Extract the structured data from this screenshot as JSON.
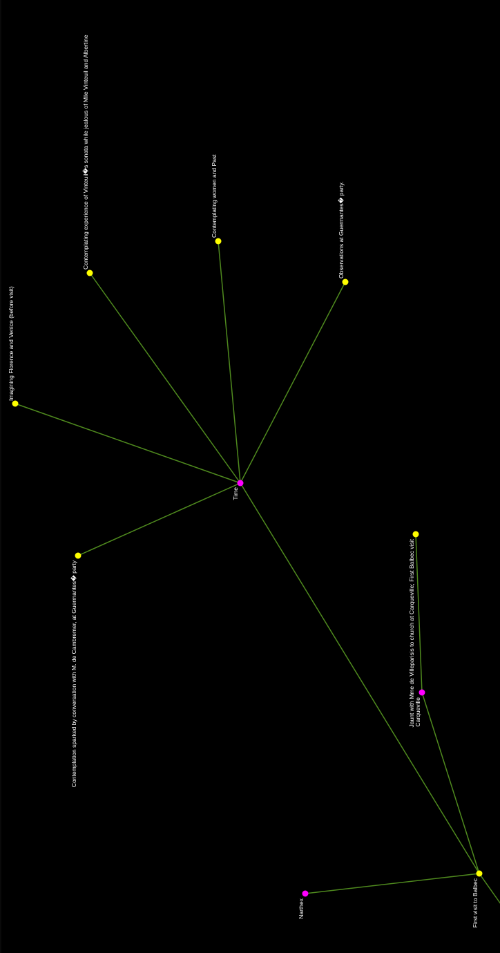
{
  "colors": {
    "background": "#000000",
    "edge": "#4f8a1e",
    "event_node": "#ffff00",
    "concept_node": "#ff00ff",
    "label": "#ffffff"
  },
  "nodes": [
    {
      "id": "n_imagining",
      "kind": "event",
      "label": "Imagining Florence and Venice (before visit)"
    },
    {
      "id": "n_vinteuil",
      "kind": "event",
      "label": "Contemplating experience of Vinteuil�s sonata while jealous of Mlle Vinteuil and Albertine"
    },
    {
      "id": "n_women",
      "kind": "event",
      "label": "Contemplating women and Past"
    },
    {
      "id": "n_observations",
      "kind": "event",
      "label": "Observations at Guermantes� party."
    },
    {
      "id": "n_time",
      "kind": "concept",
      "label": "Time"
    },
    {
      "id": "n_cambremer",
      "kind": "event",
      "label": "Contemplation sparked by conversation with M. de Cambremer, at Guermantes� party"
    },
    {
      "id": "n_jaunt",
      "kind": "event",
      "label": "Jaunt with Mme de Villeparisis to church at Carqueville; First Balbec visit"
    },
    {
      "id": "n_carqueville",
      "kind": "concept",
      "label": "Carqueville"
    },
    {
      "id": "n_balbec",
      "kind": "event",
      "label": "First visit to Balbec"
    },
    {
      "id": "n_narthex",
      "kind": "concept",
      "label": "Narthex"
    }
  ],
  "edges": [
    {
      "from": "n_time",
      "to": "n_imagining"
    },
    {
      "from": "n_time",
      "to": "n_vinteuil"
    },
    {
      "from": "n_time",
      "to": "n_women"
    },
    {
      "from": "n_time",
      "to": "n_observations"
    },
    {
      "from": "n_time",
      "to": "n_cambremer"
    },
    {
      "from": "n_time",
      "to": "n_balbec"
    },
    {
      "from": "n_carqueville",
      "to": "n_jaunt"
    },
    {
      "from": "n_carqueville",
      "to": "n_balbec"
    },
    {
      "from": "n_balbec",
      "to": "n_narthex"
    },
    {
      "from": "n_balbec",
      "to": "offscreen"
    }
  ]
}
